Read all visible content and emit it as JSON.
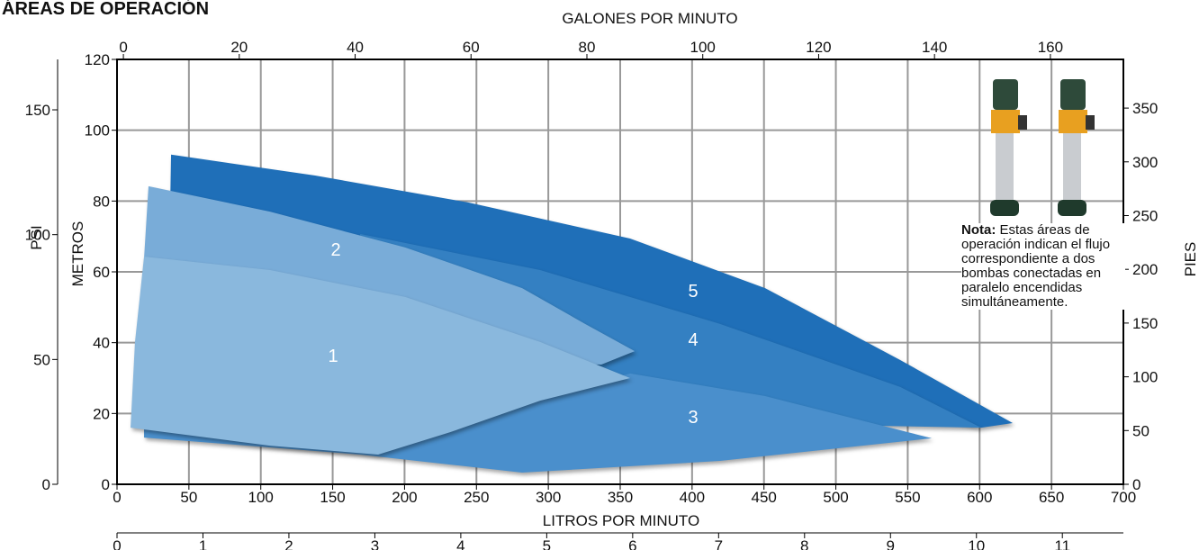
{
  "chart_data": {
    "type": "area-polygons",
    "title": "ÁREAS DE OPERACIÓN",
    "x_label": "LITROS POR MINUTO",
    "x2_label": "GALONES POR MINUTO",
    "y_label": "METROS",
    "y2_label": "PIES",
    "y3_label": "PSI",
    "xlim": [
      0,
      700
    ],
    "xticks": [
      0,
      50,
      100,
      150,
      200,
      250,
      300,
      350,
      400,
      450,
      500,
      550,
      600,
      650,
      700
    ],
    "x2lim": [
      -1.1,
      172.6
    ],
    "x2ticks": [
      0,
      20,
      40,
      60,
      80,
      100,
      120,
      140,
      160
    ],
    "x3lim": [
      0,
      11.71
    ],
    "x3ticks": [
      0,
      1,
      2,
      3,
      4,
      5,
      6,
      7,
      8,
      9,
      10,
      11
    ],
    "ylim": [
      0,
      120
    ],
    "yticks": [
      0,
      20,
      40,
      60,
      80,
      100,
      120
    ],
    "y2lim": [
      0,
      395.3
    ],
    "y2ticks": [
      0,
      50,
      100,
      150,
      200,
      250,
      300,
      350
    ],
    "y3lim": [
      0,
      170.2
    ],
    "y3ticks": [
      0,
      50,
      100,
      150
    ],
    "grid": true,
    "series": [
      {
        "name": "5",
        "color": "#1f6fb8",
        "x": [
          37.6,
          137.8,
          244.2,
          356.9,
          450.8,
          544.8,
          623.0,
          601.1,
          482.2,
          356.9,
          231.7,
          36.3
        ],
        "y": [
          93.1,
          87.2,
          79.6,
          69.4,
          55.4,
          35.1,
          17.3,
          16.0,
          27.5,
          40.2,
          52.9,
          63.1
        ]
      },
      {
        "name": "4",
        "color": "#3480c2",
        "x": [
          169.1,
          294.3,
          419.5,
          544.8,
          601.1,
          419.5,
          294.3,
          169.1
        ],
        "y": [
          70.7,
          60.5,
          45.3,
          27.5,
          16.0,
          17.3,
          24.9,
          37.6
        ]
      },
      {
        "name": "3",
        "color": "#4a8fcc",
        "x": [
          18.8,
          200.4,
          356.9,
          450.8,
          566.7,
          419.5,
          281.8,
          169.1,
          18.8
        ],
        "y": [
          15.8,
          14.7,
          31.3,
          24.9,
          13.0,
          6.6,
          3.3,
          8.4,
          13.2
        ]
      },
      {
        "name": "2",
        "color": "#79acd8",
        "x": [
          21.9,
          106.4,
          200.4,
          281.8,
          325.6,
          360.1,
          336.9,
          169.1,
          12.5
        ],
        "y": [
          84.2,
          77.0,
          66.9,
          55.4,
          45.3,
          37.6,
          33.8,
          35.1,
          22.4
        ]
      },
      {
        "name": "1",
        "color": "#8ab8dd",
        "x": [
          18.8,
          106.4,
          200.4,
          294.3,
          356.9,
          294.3,
          231.7,
          181.6,
          106.4,
          9.4,
          12.5
        ],
        "y": [
          64.3,
          60.5,
          52.9,
          40.2,
          30.0,
          23.6,
          14.7,
          8.4,
          10.9,
          16.0,
          40.2
        ]
      }
    ],
    "note": {
      "label": "Nota:",
      "text": "Estas áreas de operación indican el flujo correspondiente a dos bombas conectadas en paralelo encendidas simultáneamente."
    }
  }
}
